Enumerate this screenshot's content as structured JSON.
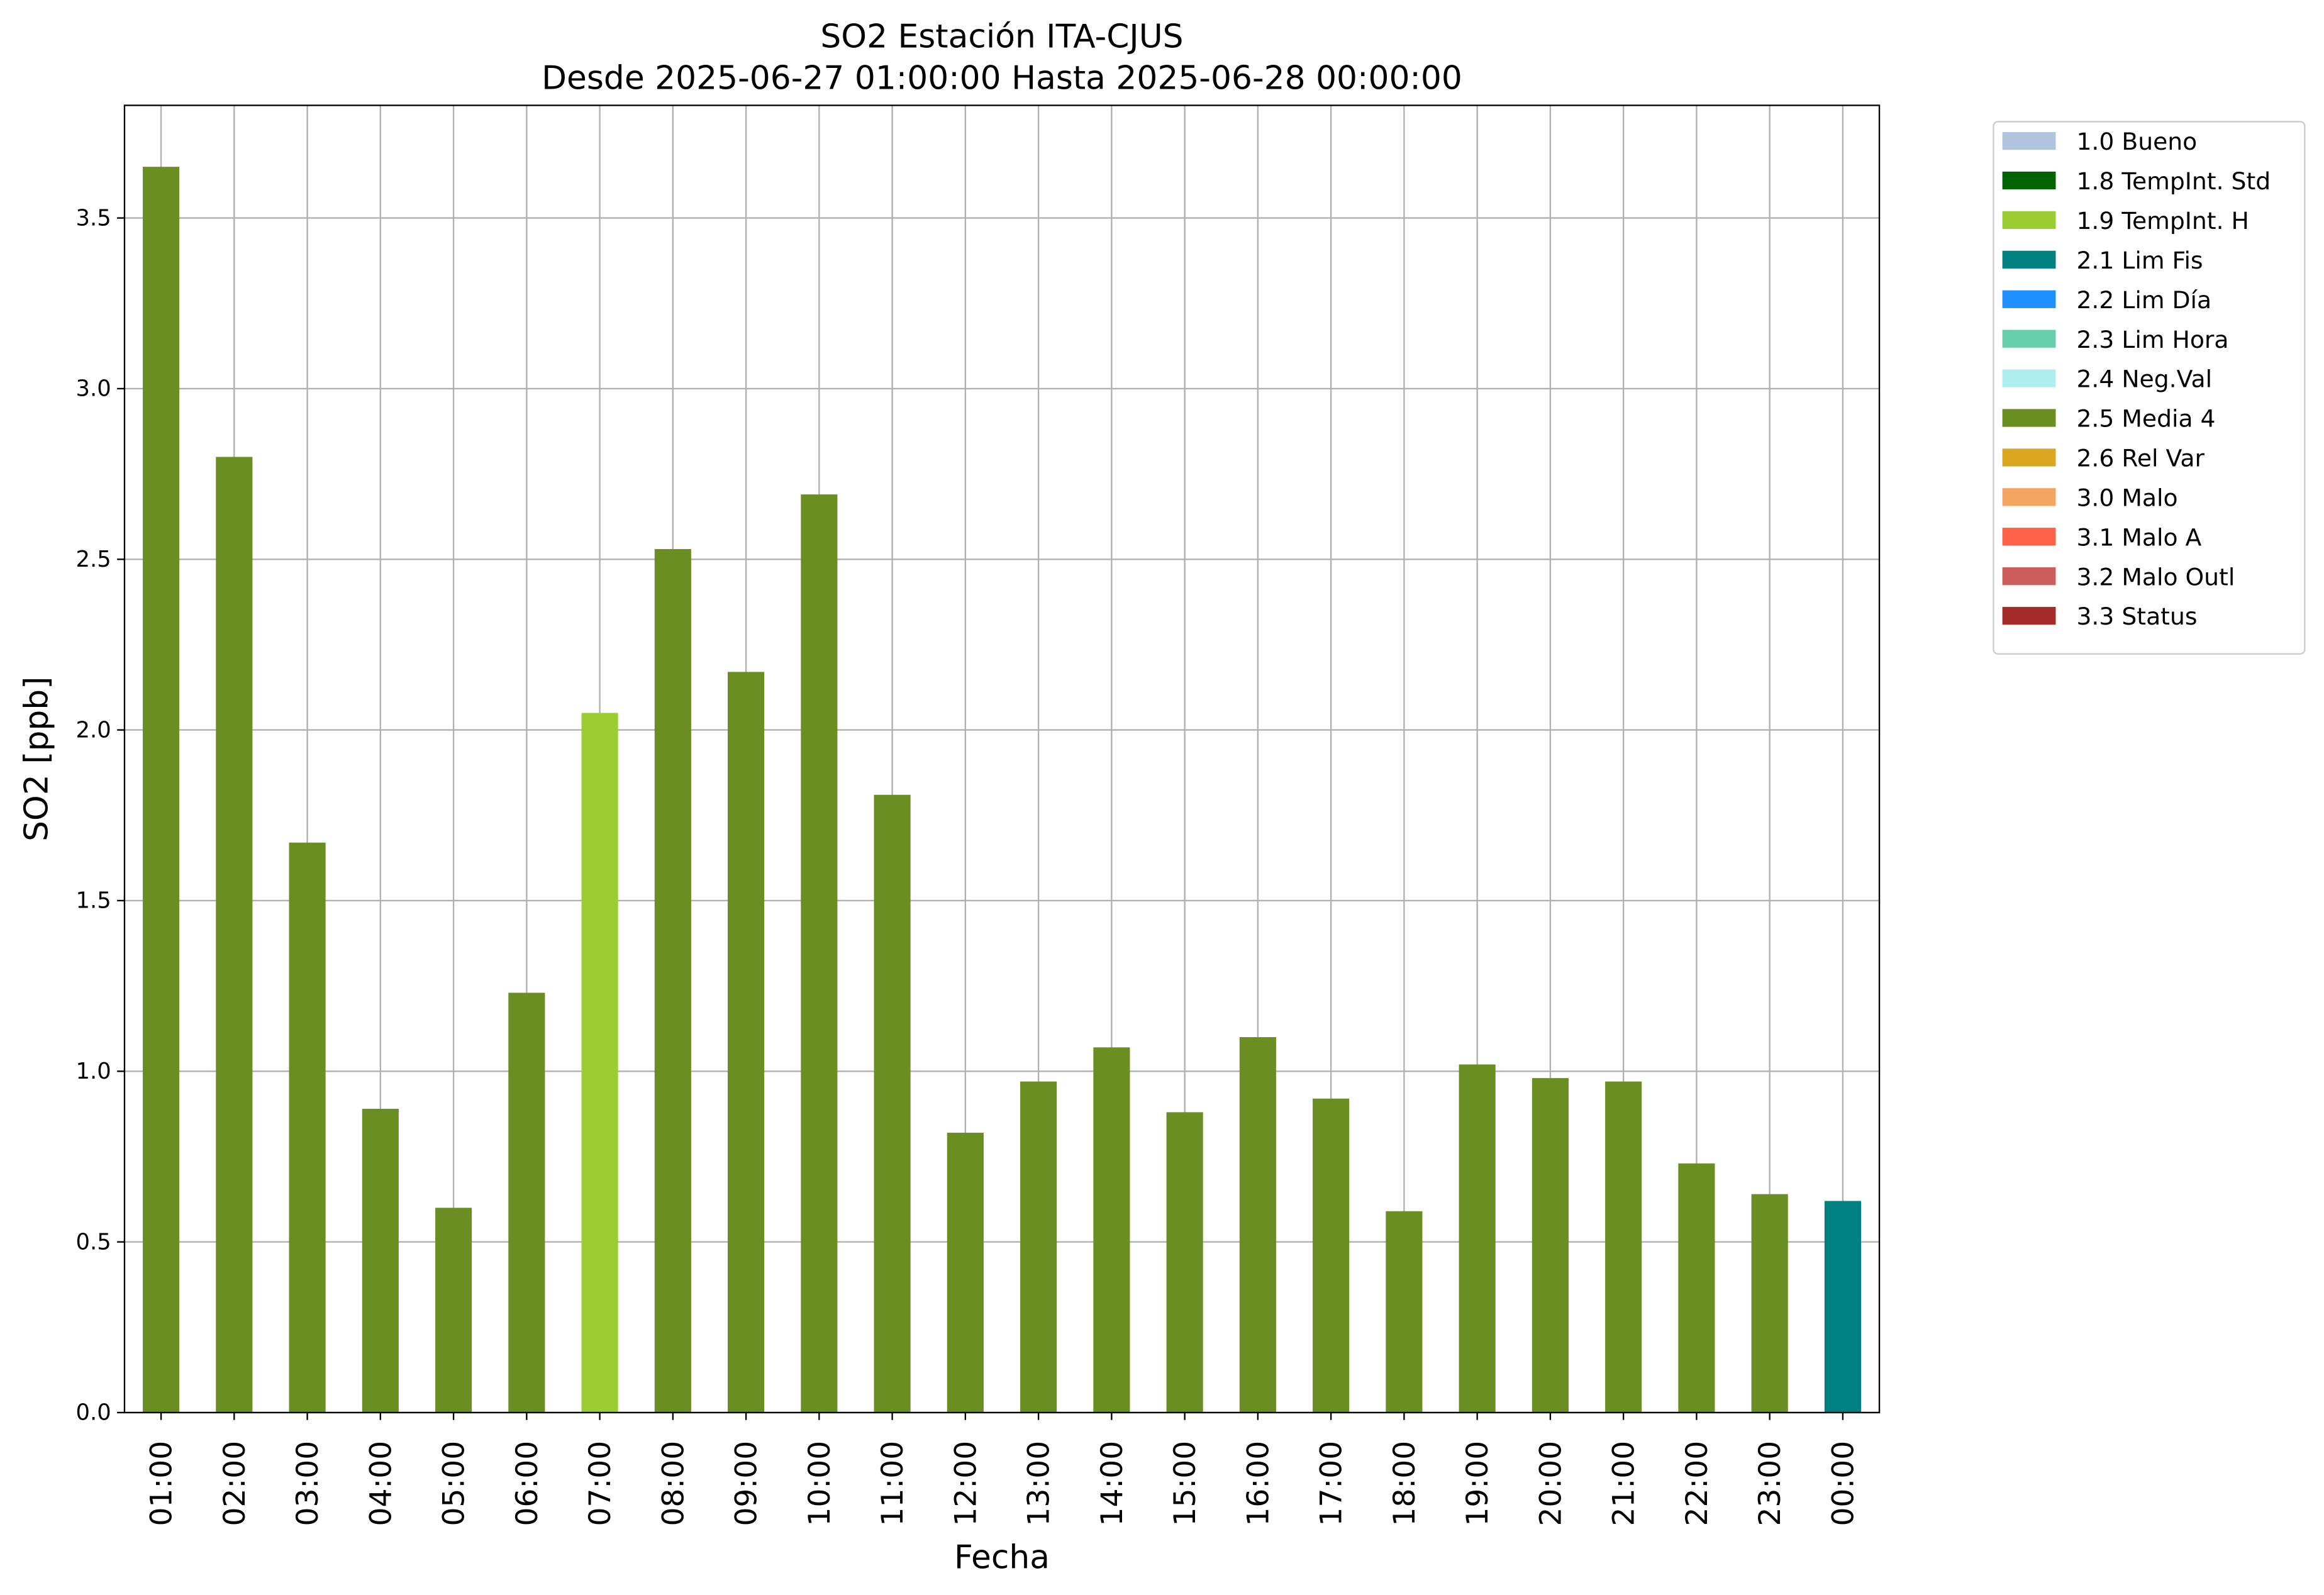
{
  "chart_data": {
    "type": "bar",
    "stacked": true,
    "title": "SO2 Estación ITA-CJUS",
    "subtitle": "Desde 2025-06-27 01:00:00 Hasta 2025-06-28 00:00:00",
    "x_label": "Fecha",
    "y_label": "SO2 [ppb]",
    "categories": [
      "01:00",
      "02:00",
      "03:00",
      "04:00",
      "05:00",
      "06:00",
      "07:00",
      "08:00",
      "09:00",
      "10:00",
      "11:00",
      "12:00",
      "13:00",
      "14:00",
      "15:00",
      "16:00",
      "17:00",
      "18:00",
      "19:00",
      "20:00",
      "21:00",
      "22:00",
      "23:00",
      "00:00"
    ],
    "series": [
      {
        "name": "1.0 Bueno",
        "color": "#b0c4de",
        "values": [
          null,
          null,
          null,
          null,
          null,
          null,
          null,
          null,
          null,
          null,
          null,
          null,
          null,
          null,
          null,
          null,
          null,
          null,
          null,
          null,
          null,
          null,
          null,
          null
        ]
      },
      {
        "name": "1.8 TempInt. Std",
        "color": "#006400",
        "values": [
          null,
          null,
          null,
          null,
          null,
          null,
          null,
          null,
          null,
          null,
          null,
          null,
          null,
          null,
          null,
          null,
          null,
          null,
          null,
          null,
          null,
          null,
          null,
          null
        ]
      },
      {
        "name": "1.9 TempInt. H",
        "color": "#9acd32",
        "values": [
          null,
          null,
          null,
          null,
          null,
          null,
          2.05,
          null,
          null,
          null,
          null,
          null,
          null,
          null,
          null,
          null,
          null,
          null,
          null,
          null,
          null,
          null,
          null,
          null
        ]
      },
      {
        "name": "2.1 Lim Fis",
        "color": "#008080",
        "values": [
          null,
          null,
          null,
          null,
          null,
          null,
          null,
          null,
          null,
          null,
          null,
          null,
          null,
          null,
          null,
          null,
          null,
          null,
          null,
          null,
          null,
          null,
          null,
          0.62
        ]
      },
      {
        "name": "2.2 Lim Día",
        "color": "#1e90ff",
        "values": [
          null,
          null,
          null,
          null,
          null,
          null,
          null,
          null,
          null,
          null,
          null,
          null,
          null,
          null,
          null,
          null,
          null,
          null,
          null,
          null,
          null,
          null,
          null,
          null
        ]
      },
      {
        "name": "2.3 Lim Hora",
        "color": "#66cdaa",
        "values": [
          null,
          null,
          null,
          null,
          null,
          null,
          null,
          null,
          null,
          null,
          null,
          null,
          null,
          null,
          null,
          null,
          null,
          null,
          null,
          null,
          null,
          null,
          null,
          null
        ]
      },
      {
        "name": "2.4 Neg.Val",
        "color": "#afeeee",
        "values": [
          null,
          null,
          null,
          null,
          null,
          null,
          null,
          null,
          null,
          null,
          null,
          null,
          null,
          null,
          null,
          null,
          null,
          null,
          null,
          null,
          null,
          null,
          null,
          null
        ]
      },
      {
        "name": "2.5 Media 4",
        "color": "#6b8e23",
        "values": [
          3.65,
          2.8,
          1.67,
          0.89,
          0.6,
          1.23,
          null,
          2.53,
          2.17,
          2.69,
          1.81,
          0.82,
          0.97,
          1.07,
          0.88,
          1.1,
          0.92,
          0.59,
          1.02,
          0.98,
          0.97,
          0.73,
          0.64,
          null
        ]
      },
      {
        "name": "2.6 Rel Var",
        "color": "#daa520",
        "values": [
          null,
          null,
          null,
          null,
          null,
          null,
          null,
          null,
          null,
          null,
          null,
          null,
          null,
          null,
          null,
          null,
          null,
          null,
          null,
          null,
          null,
          null,
          null,
          null
        ]
      },
      {
        "name": "3.0 Malo",
        "color": "#f4a460",
        "values": [
          null,
          null,
          null,
          null,
          null,
          null,
          null,
          null,
          null,
          null,
          null,
          null,
          null,
          null,
          null,
          null,
          null,
          null,
          null,
          null,
          null,
          null,
          null,
          null
        ]
      },
      {
        "name": "3.1 Malo A",
        "color": "#ff6347",
        "values": [
          null,
          null,
          null,
          null,
          null,
          null,
          null,
          null,
          null,
          null,
          null,
          null,
          null,
          null,
          null,
          null,
          null,
          null,
          null,
          null,
          null,
          null,
          null,
          null
        ]
      },
      {
        "name": "3.2 Malo Outl",
        "color": "#cd5c5c",
        "values": [
          null,
          null,
          null,
          null,
          null,
          null,
          null,
          null,
          null,
          null,
          null,
          null,
          null,
          null,
          null,
          null,
          null,
          null,
          null,
          null,
          null,
          null,
          null,
          null
        ]
      },
      {
        "name": "3.3 Status",
        "color": "#a52a2a",
        "values": [
          null,
          null,
          null,
          null,
          null,
          null,
          null,
          null,
          null,
          null,
          null,
          null,
          null,
          null,
          null,
          null,
          null,
          null,
          null,
          null,
          null,
          null,
          null,
          null
        ]
      }
    ],
    "ylim": [
      0,
      3.83
    ],
    "yticks": [
      {
        "value": 0,
        "label": "0.0"
      },
      0.5,
      {
        "value": 1,
        "label": "1.0"
      },
      1.5,
      {
        "value": 2,
        "label": "2.0"
      },
      2.5,
      {
        "value": 3,
        "label": "3.0"
      },
      3.5
    ],
    "grid": true,
    "legend": "outside right"
  }
}
